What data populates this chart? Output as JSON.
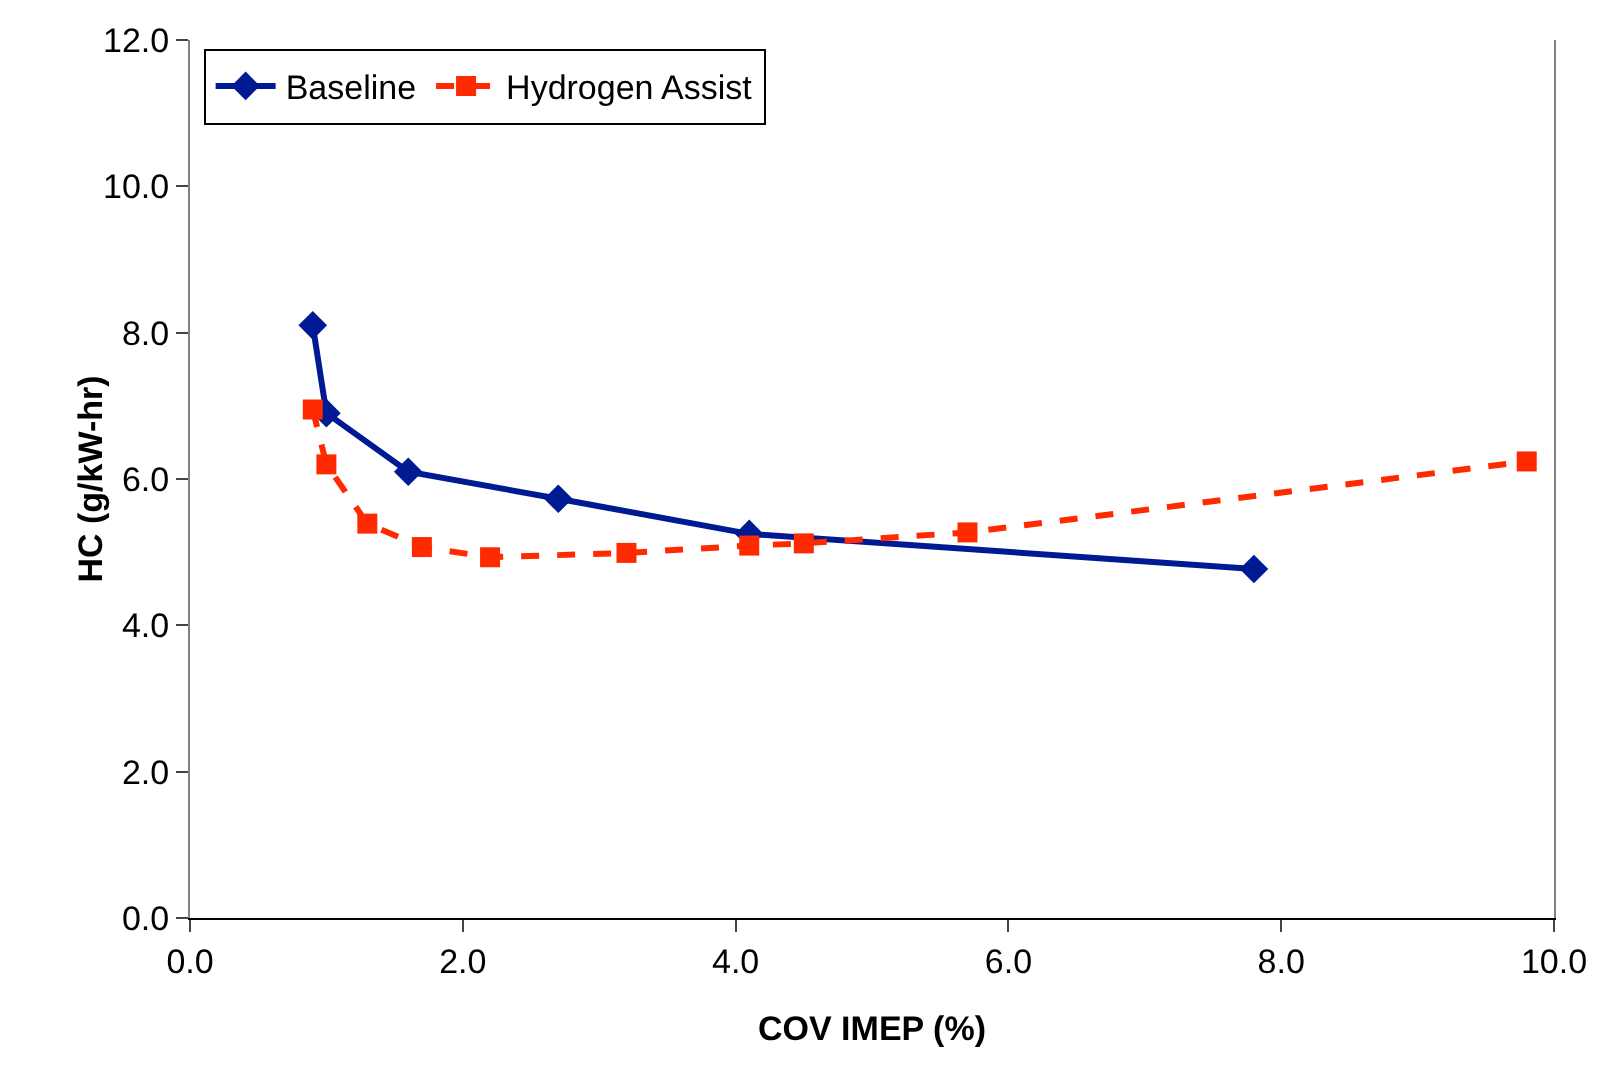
{
  "chart_data": {
    "type": "line",
    "xlabel": "COV IMEP (%)",
    "ylabel": "HC (g/kW-hr)",
    "series": [
      {
        "name": "Baseline",
        "color": "#001a94",
        "marker": "diamond",
        "line_style": "solid",
        "x": [
          0.9,
          1.0,
          1.6,
          2.7,
          4.1,
          7.8
        ],
        "values": [
          8.1,
          6.9,
          6.1,
          5.73,
          5.25,
          4.77
        ]
      },
      {
        "name": "Hydrogen Assist",
        "color": "#ff2a00",
        "marker": "square",
        "line_style": "dashed",
        "x": [
          0.9,
          1.0,
          1.3,
          1.7,
          2.2,
          3.2,
          4.1,
          4.5,
          5.7,
          9.8
        ],
        "values": [
          6.95,
          6.2,
          5.39,
          5.07,
          4.93,
          4.99,
          5.09,
          5.12,
          5.27,
          6.24
        ]
      }
    ],
    "xlim": [
      0,
      10
    ],
    "xticks": [
      {
        "value": 0,
        "label": "0.0"
      },
      {
        "value": 2,
        "label": "2.0"
      },
      {
        "value": 4,
        "label": "4.0"
      },
      {
        "value": 6,
        "label": "6.0"
      },
      {
        "value": 8,
        "label": "8.0"
      },
      {
        "value": 10,
        "label": "10.0"
      }
    ],
    "ylim": [
      0,
      12
    ],
    "yticks": [
      {
        "value": 0,
        "label": "0.0"
      },
      {
        "value": 2,
        "label": "2.0"
      },
      {
        "value": 4,
        "label": "4.0"
      },
      {
        "value": 6,
        "label": "6.0"
      },
      {
        "value": 8,
        "label": "8.0"
      },
      {
        "value": 10,
        "label": "10.0"
      },
      {
        "value": 12,
        "label": "12.0"
      }
    ],
    "grid": false,
    "legend": "top left"
  }
}
